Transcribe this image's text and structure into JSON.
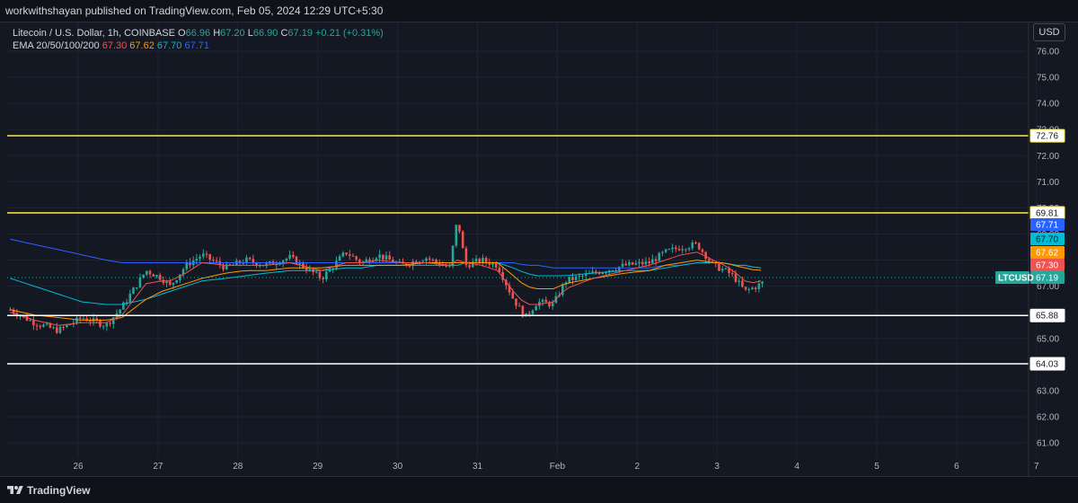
{
  "header": {
    "publisher": "workwithshayan published on TradingView.com, Feb 05, 2024 12:29 UTC+5:30"
  },
  "legend": {
    "title": "Litecoin / U.S. Dollar, 1h, COINBASE",
    "o_label": "O",
    "o_value": "66.96",
    "h_label": "H",
    "h_value": "67.20",
    "l_label": "L",
    "l_value": "66.90",
    "c_label": "C",
    "c_value": "67.19",
    "change": "+0.21 (+0.31%)",
    "ema_label": "EMA 20/50/100/200",
    "ema20": "67.30",
    "ema50": "67.62",
    "ema100": "67.70",
    "ema200": "67.71"
  },
  "currency_button": "USD",
  "footer": {
    "brand": "TradingView"
  },
  "colors": {
    "background": "#141823",
    "up": "#26a69a",
    "down": "#ef5350",
    "ema20": "#ef5350",
    "ema50": "#ff9800",
    "ema100": "#00bcd4",
    "ema200": "#2962ff",
    "yellow_line": "#ffeb3b",
    "white_line": "#ffffff"
  },
  "chart_data": {
    "type": "candlestick",
    "symbol": "LTCUSD",
    "interval": "1h",
    "y_ticks": [
      "76.00",
      "75.00",
      "74.00",
      "73.00",
      "72.00",
      "71.00",
      "70.00",
      "69.00",
      "68.00",
      "67.00",
      "66.00",
      "65.00",
      "64.00",
      "63.00",
      "62.00",
      "61.00"
    ],
    "ylim": [
      60.5,
      76.5
    ],
    "x_ticks": [
      "26",
      "27",
      "28",
      "29",
      "30",
      "31",
      "Feb",
      "2",
      "3",
      "4",
      "5",
      "6",
      "7"
    ],
    "horizontal_levels": [
      {
        "value": 72.76,
        "label": "72.76",
        "color": "yellow"
      },
      {
        "value": 69.81,
        "label": "69.81",
        "color": "yellow"
      },
      {
        "value": 65.88,
        "label": "65.88",
        "color": "white"
      },
      {
        "value": 64.03,
        "label": "64.03",
        "color": "white"
      }
    ],
    "price_badges": [
      {
        "value": 67.71,
        "label": "67.71",
        "series": "EMA 200"
      },
      {
        "value": 67.7,
        "label": "67.70",
        "series": "EMA 100"
      },
      {
        "value": 67.62,
        "label": "67.62",
        "series": "EMA 50"
      },
      {
        "value": 67.3,
        "label": "67.30",
        "series": "EMA 20"
      },
      {
        "value": 67.19,
        "label": "67.19",
        "series": "last"
      }
    ],
    "last_price_tag": "LTCUSD",
    "price_path_x_days": [
      0.0,
      0.3,
      0.6,
      0.9,
      1.2,
      1.4,
      1.7,
      1.9,
      2.0,
      2.2,
      2.4,
      2.7,
      2.95,
      3.2,
      3.5,
      3.9,
      4.2,
      4.4,
      4.6,
      4.9,
      5.2,
      5.5,
      5.6,
      5.7,
      5.9,
      6.1,
      6.3,
      6.45,
      6.6,
      6.8,
      6.95,
      7.3,
      7.7,
      8.0,
      8.2,
      8.4,
      8.6,
      8.8,
      8.95,
      9.05,
      9.2,
      9.35,
      9.45
    ],
    "price_path_values": [
      66.1,
      65.6,
      65.3,
      65.8,
      65.5,
      66.2,
      67.6,
      67.3,
      67.0,
      67.8,
      68.2,
      67.7,
      68.0,
      67.8,
      68.1,
      67.3,
      68.3,
      67.9,
      68.2,
      67.8,
      68.1,
      67.7,
      69.6,
      67.8,
      68.0,
      67.8,
      66.5,
      65.8,
      66.4,
      66.3,
      67.2,
      67.5,
      67.8,
      67.9,
      68.3,
      68.5,
      68.6,
      67.8,
      67.6,
      67.4,
      66.8,
      67.0,
      67.19
    ],
    "ema20_values": [
      66.0,
      65.7,
      65.5,
      65.6,
      65.6,
      65.9,
      67.1,
      67.2,
      67.2,
      67.5,
      67.9,
      67.8,
      67.8,
      67.8,
      67.9,
      67.6,
      67.9,
      67.9,
      68.0,
      67.9,
      67.9,
      67.8,
      68.0,
      67.9,
      67.8,
      67.6,
      66.8,
      66.3,
      66.3,
      66.4,
      66.9,
      67.3,
      67.6,
      67.8,
      68.0,
      68.2,
      68.3,
      68.0,
      67.8,
      67.6,
      67.2,
      67.1,
      67.3
    ],
    "ema50_values": [
      66.1,
      65.9,
      65.8,
      65.7,
      65.7,
      65.8,
      66.5,
      66.8,
      66.9,
      67.1,
      67.3,
      67.5,
      67.6,
      67.6,
      67.7,
      67.7,
      67.8,
      67.8,
      67.8,
      67.8,
      67.9,
      67.9,
      67.9,
      67.9,
      67.9,
      67.9,
      67.4,
      67.0,
      66.9,
      66.9,
      67.1,
      67.3,
      67.5,
      67.6,
      67.8,
      67.9,
      68.0,
      67.9,
      67.9,
      67.8,
      67.7,
      67.6,
      67.62
    ],
    "ema100_values": [
      67.3,
      67.0,
      66.7,
      66.4,
      66.3,
      66.3,
      66.5,
      66.7,
      66.8,
      67.0,
      67.2,
      67.3,
      67.4,
      67.5,
      67.6,
      67.6,
      67.7,
      67.7,
      67.8,
      67.8,
      67.8,
      67.8,
      67.8,
      67.9,
      67.9,
      67.9,
      67.7,
      67.5,
      67.4,
      67.4,
      67.4,
      67.5,
      67.6,
      67.6,
      67.7,
      67.8,
      67.9,
      67.9,
      67.9,
      67.8,
      67.8,
      67.7,
      67.7
    ],
    "ema200_values": [
      68.8,
      68.6,
      68.4,
      68.2,
      68.0,
      67.9,
      67.9,
      67.9,
      67.9,
      67.9,
      67.9,
      67.9,
      67.9,
      67.9,
      67.9,
      67.9,
      67.9,
      67.9,
      67.9,
      67.9,
      67.9,
      67.9,
      67.9,
      67.9,
      67.9,
      67.9,
      67.9,
      67.8,
      67.8,
      67.7,
      67.7,
      67.7,
      67.7,
      67.7,
      67.8,
      67.8,
      67.9,
      67.9,
      67.9,
      67.8,
      67.8,
      67.7,
      67.71
    ]
  }
}
